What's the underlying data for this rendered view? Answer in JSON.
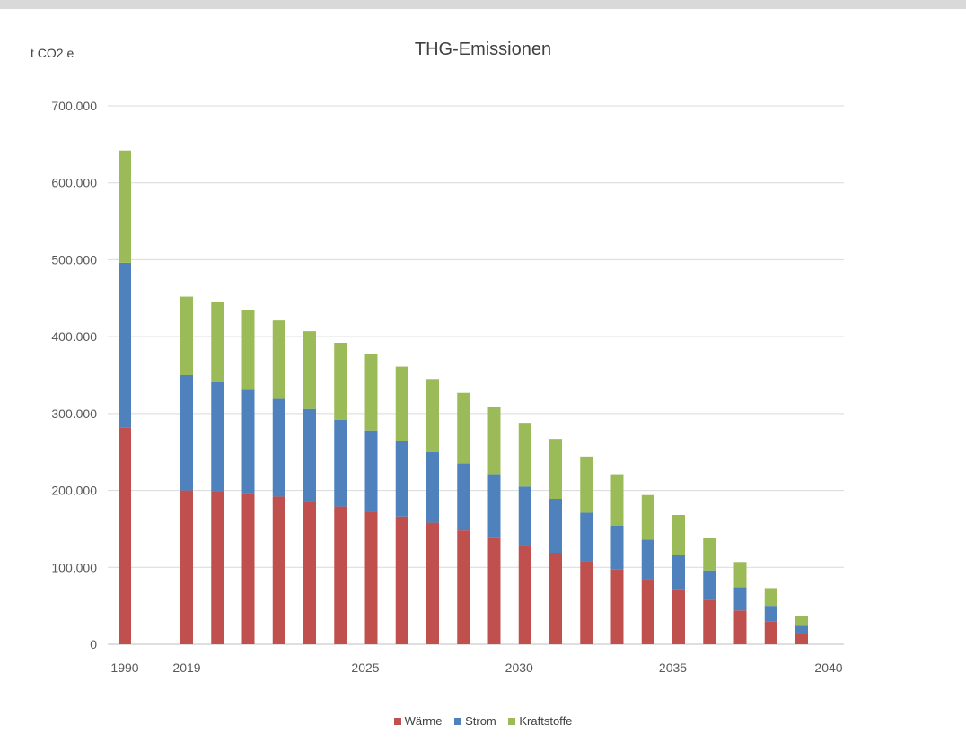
{
  "chart_data": {
    "type": "bar",
    "stacked": true,
    "title": "THG-Emissionen",
    "ylabel": "t CO2 e",
    "xlabel": "",
    "ylim": [
      0,
      700000
    ],
    "yticks": [
      0,
      100000,
      200000,
      300000,
      400000,
      500000,
      600000,
      700000
    ],
    "ytick_labels": [
      "0",
      "100.000",
      "200.000",
      "300.000",
      "400.000",
      "500.000",
      "600.000",
      "700.000"
    ],
    "xtick_labels": [
      "1990",
      "2019",
      "2025",
      "2030",
      "2035",
      "2040"
    ],
    "categories": [
      "1990",
      "2019",
      "2020",
      "2021",
      "2022",
      "2023",
      "2024",
      "2025",
      "2026",
      "2027",
      "2028",
      "2029",
      "2030",
      "2031",
      "2032",
      "2033",
      "2034",
      "2035",
      "2036",
      "2037",
      "2038",
      "2039"
    ],
    "series": [
      {
        "name": "Wärme",
        "color": "#c0504d",
        "values": [
          282000,
          200000,
          199000,
          197000,
          192000,
          186000,
          179000,
          172000,
          166000,
          158000,
          148000,
          139000,
          129000,
          119000,
          108000,
          97000,
          85000,
          72000,
          58000,
          44000,
          30000,
          14000
        ]
      },
      {
        "name": "Strom",
        "color": "#4f81bd",
        "values": [
          214000,
          150000,
          142000,
          134000,
          127000,
          120000,
          113000,
          106000,
          98000,
          92000,
          87000,
          82000,
          76000,
          70000,
          63000,
          57000,
          51000,
          44000,
          38000,
          30000,
          20000,
          10000
        ]
      },
      {
        "name": "Kraftstoffe",
        "color": "#9bbb59",
        "values": [
          146000,
          102000,
          104000,
          103000,
          102000,
          101000,
          100000,
          99000,
          97000,
          95000,
          92000,
          87000,
          83000,
          78000,
          73000,
          67000,
          58000,
          52000,
          42000,
          33000,
          23000,
          13000
        ]
      }
    ],
    "grid": true,
    "legend_position": "bottom"
  }
}
